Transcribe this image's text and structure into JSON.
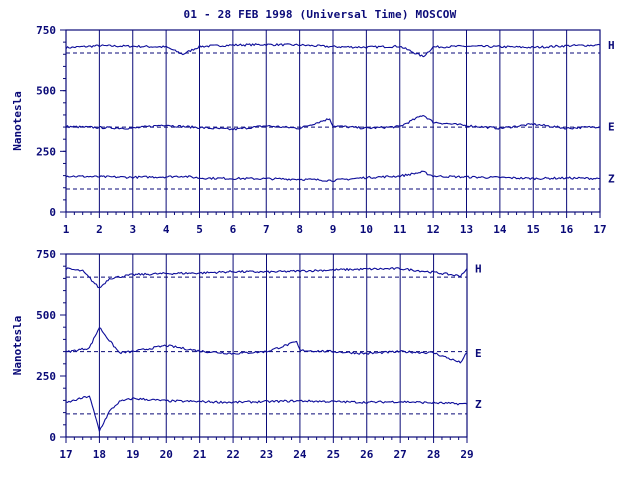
{
  "title": "01 - 28 FEB 1998 (Universal Time) MOSCOW",
  "colors": {
    "ink": "#0a0a78",
    "trace": "#0d0d9a",
    "background": "#ffffff"
  },
  "chart_data": [
    {
      "type": "line",
      "ylabel": "Nanotesla",
      "xlim": [
        1,
        17
      ],
      "ylim": [
        0,
        750
      ],
      "xticks": [
        "1",
        "2",
        "3",
        "4",
        "5",
        "6",
        "7",
        "8",
        "9",
        "10",
        "11",
        "12",
        "13",
        "14",
        "15",
        "16",
        "17"
      ],
      "yticks": [
        "0",
        "250",
        "500",
        "750"
      ],
      "grid": "vertical lines at each day",
      "series": [
        {
          "name": "H",
          "baseline": 655,
          "points": [
            [
              1,
              677
            ],
            [
              2,
              685
            ],
            [
              3,
              683
            ],
            [
              4,
              680
            ],
            [
              4.5,
              650
            ],
            [
              5,
              682
            ],
            [
              6,
              688
            ],
            [
              7,
              690
            ],
            [
              8,
              688
            ],
            [
              9,
              681
            ],
            [
              10,
              679
            ],
            [
              11,
              683
            ],
            [
              11.7,
              640
            ],
            [
              12,
              680
            ],
            [
              13,
              683
            ],
            [
              14,
              681
            ],
            [
              15,
              678
            ],
            [
              16,
              685
            ],
            [
              17,
              688
            ]
          ]
        },
        {
          "name": "E",
          "baseline": 350,
          "points": [
            [
              1,
              352
            ],
            [
              2,
              348
            ],
            [
              3,
              345
            ],
            [
              4,
              360
            ],
            [
              4.2,
              355
            ],
            [
              5,
              348
            ],
            [
              6,
              340
            ],
            [
              7,
              355
            ],
            [
              8,
              345
            ],
            [
              8.9,
              385
            ],
            [
              9,
              355
            ],
            [
              10,
              345
            ],
            [
              11,
              352
            ],
            [
              11.7,
              400
            ],
            [
              12,
              370
            ],
            [
              13,
              356
            ],
            [
              14,
              345
            ],
            [
              15,
              362
            ],
            [
              16,
              345
            ],
            [
              17,
              352
            ]
          ]
        },
        {
          "name": "Z",
          "baseline": 95,
          "points": [
            [
              1,
              148
            ],
            [
              2,
              145
            ],
            [
              3,
              143
            ],
            [
              4,
              145
            ],
            [
              4.5,
              148
            ],
            [
              5,
              140
            ],
            [
              6,
              138
            ],
            [
              7,
              137
            ],
            [
              8,
              135
            ],
            [
              9,
              130
            ],
            [
              10,
              142
            ],
            [
              11,
              148
            ],
            [
              11.7,
              165
            ],
            [
              12,
              148
            ],
            [
              13,
              144
            ],
            [
              14,
              142
            ],
            [
              15,
              138
            ],
            [
              16,
              140
            ],
            [
              17,
              138
            ]
          ]
        }
      ]
    },
    {
      "type": "line",
      "ylabel": "Nanotesla",
      "xlim": [
        17,
        29
      ],
      "ylim": [
        0,
        750
      ],
      "xticks": [
        "17",
        "18",
        "19",
        "20",
        "21",
        "22",
        "23",
        "24",
        "25",
        "26",
        "27",
        "28",
        "29"
      ],
      "yticks": [
        "0",
        "250",
        "500",
        "750"
      ],
      "grid": "vertical lines at each day",
      "series": [
        {
          "name": "H",
          "baseline": 655,
          "points": [
            [
              17,
              690
            ],
            [
              17.5,
              680
            ],
            [
              18,
              610
            ],
            [
              18.3,
              650
            ],
            [
              19,
              665
            ],
            [
              20,
              670
            ],
            [
              21,
              672
            ],
            [
              22,
              678
            ],
            [
              23,
              676
            ],
            [
              24,
              680
            ],
            [
              25,
              685
            ],
            [
              26,
              688
            ],
            [
              27,
              690
            ],
            [
              28,
              675
            ],
            [
              28.8,
              660
            ],
            [
              29,
              690
            ]
          ]
        },
        {
          "name": "E",
          "baseline": 350,
          "points": [
            [
              17,
              348
            ],
            [
              17.7,
              365
            ],
            [
              18,
              450
            ],
            [
              18.3,
              395
            ],
            [
              18.6,
              345
            ],
            [
              19,
              350
            ],
            [
              20,
              375
            ],
            [
              21,
              352
            ],
            [
              22,
              342
            ],
            [
              23,
              350
            ],
            [
              23.9,
              390
            ],
            [
              24,
              355
            ],
            [
              25,
              350
            ],
            [
              26,
              342
            ],
            [
              27,
              350
            ],
            [
              28,
              345
            ],
            [
              28.8,
              305
            ],
            [
              29,
              345
            ]
          ]
        },
        {
          "name": "Z",
          "baseline": 95,
          "points": [
            [
              17,
              140
            ],
            [
              17.7,
              168
            ],
            [
              18,
              25
            ],
            [
              18.3,
              105
            ],
            [
              18.6,
              145
            ],
            [
              19,
              158
            ],
            [
              20,
              148
            ],
            [
              21,
              145
            ],
            [
              22,
              142
            ],
            [
              23,
              145
            ],
            [
              24,
              148
            ],
            [
              25,
              145
            ],
            [
              26,
              142
            ],
            [
              27,
              145
            ],
            [
              28,
              140
            ],
            [
              29,
              135
            ]
          ]
        }
      ]
    }
  ]
}
